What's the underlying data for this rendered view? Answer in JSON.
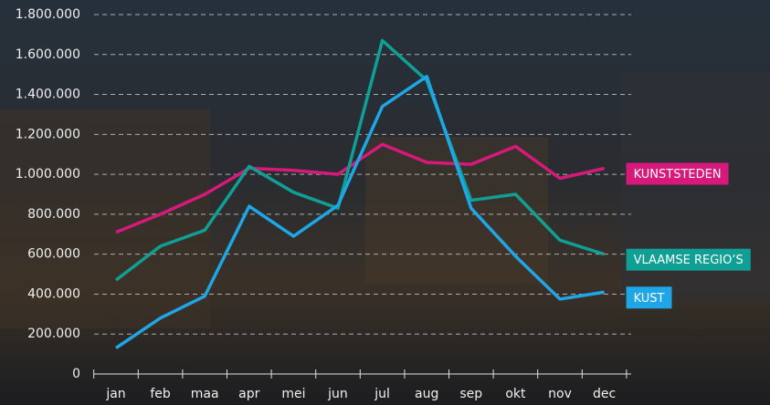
{
  "chart_data": {
    "type": "line",
    "categories": [
      "jan",
      "feb",
      "maa",
      "apr",
      "mei",
      "jun",
      "jul",
      "aug",
      "sep",
      "okt",
      "nov",
      "dec"
    ],
    "series": [
      {
        "name": "KUNSTSTEDEN",
        "color": "#d6197a",
        "values": [
          710000,
          800000,
          900000,
          1030000,
          1020000,
          1000000,
          1150000,
          1060000,
          1050000,
          1140000,
          980000,
          1030000
        ]
      },
      {
        "name": "VLAAMSE REGIO’S",
        "color": "#0f9f94",
        "values": [
          470000,
          640000,
          720000,
          1040000,
          910000,
          830000,
          1670000,
          1470000,
          870000,
          900000,
          670000,
          600000
        ]
      },
      {
        "name": "KUST",
        "color": "#1ea6e6",
        "values": [
          130000,
          280000,
          390000,
          840000,
          690000,
          845000,
          1340000,
          1490000,
          830000,
          590000,
          375000,
          410000
        ]
      }
    ],
    "ylim": [
      0,
      1800000
    ],
    "yticks": [
      0,
      {
        "value": 200000,
        "label": "200.000"
      },
      {
        "value": 400000,
        "label": "400.000"
      },
      {
        "value": 600000,
        "label": "600.000"
      },
      {
        "value": 800000,
        "label": "800.000"
      },
      {
        "value": 1000000,
        "label": "1.000.000"
      },
      {
        "value": 1200000,
        "label": "1.200.000"
      },
      {
        "value": 1400000,
        "label": "1.400.000"
      },
      {
        "value": 1600000,
        "label": "1.600.000"
      },
      {
        "value": 1800000,
        "label": "1.800.000"
      }
    ],
    "grid": true
  }
}
